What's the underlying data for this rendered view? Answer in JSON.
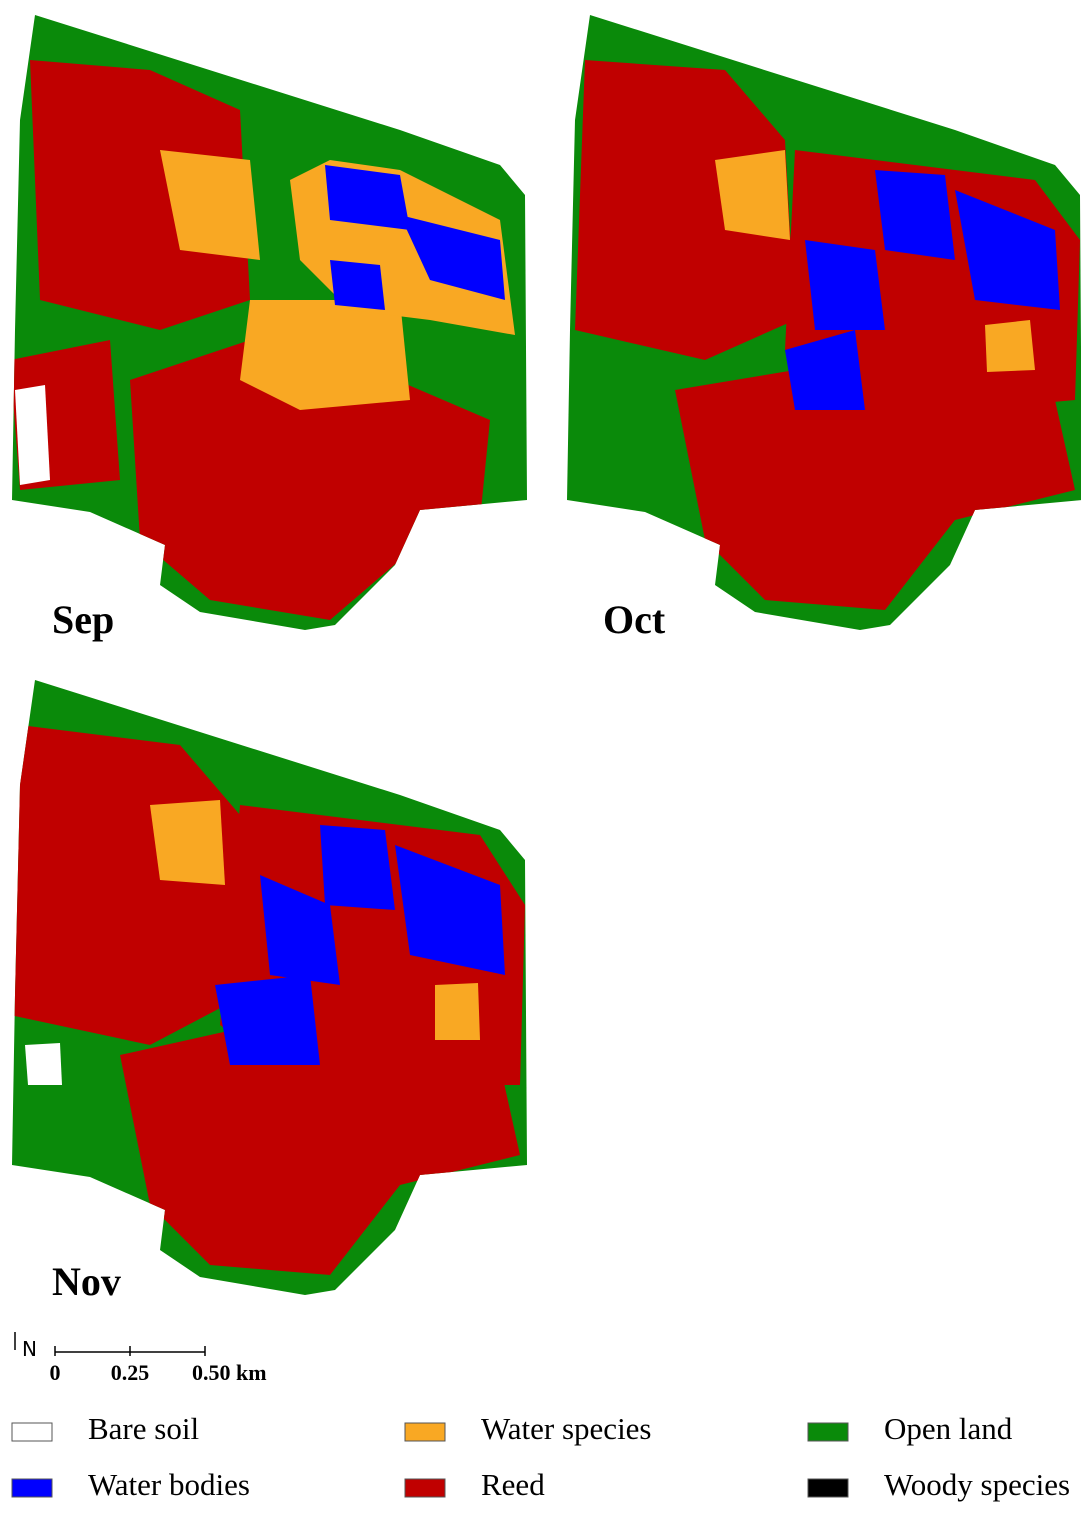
{
  "maps": [
    {
      "label": "Sep"
    },
    {
      "label": "Oct"
    },
    {
      "label": "Nov"
    }
  ],
  "north_arrow": "N",
  "scale_bar": {
    "labels": [
      "0",
      "0.25",
      "0.50 km"
    ]
  },
  "legend": [
    {
      "name": "Bare soil",
      "color": "#ffffff"
    },
    {
      "name": "Water species",
      "color": "#f9a823"
    },
    {
      "name": "Open land",
      "color": "#0a8a0a"
    },
    {
      "name": "Water bodies",
      "color": "#0000ff"
    },
    {
      "name": "Reed",
      "color": "#c00000"
    },
    {
      "name": "Woody species",
      "color": "#000000"
    }
  ]
}
